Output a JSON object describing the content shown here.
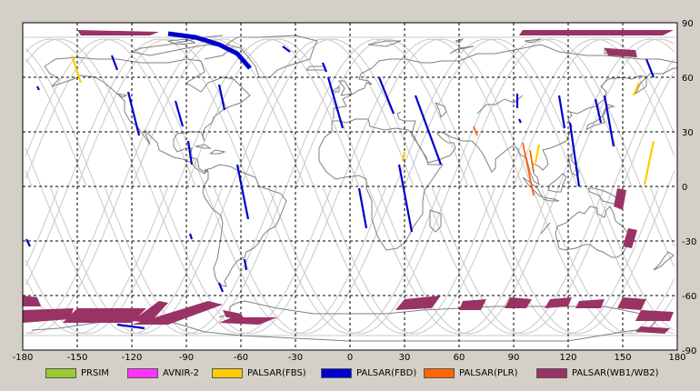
{
  "chart_data": {
    "type": "map",
    "xlim": [
      -180,
      180
    ],
    "ylim": [
      -90,
      90
    ],
    "x_ticks": [
      "-180",
      "-150",
      "-120",
      "-90",
      "-60",
      "-30",
      "0",
      "30",
      "60",
      "90",
      "120",
      "150",
      "180"
    ],
    "y_ticks": [
      {
        "v": 90,
        "t": "90"
      },
      {
        "v": 60,
        "t": "60"
      },
      {
        "v": 30,
        "t": "30"
      },
      {
        "v": 0,
        "t": "0"
      },
      {
        "v": -30,
        "t": "-30"
      },
      {
        "v": -60,
        "t": "-60"
      },
      {
        "v": -90,
        "t": "-90"
      }
    ],
    "grid": true,
    "legend": [
      {
        "name": "PRSIM",
        "color": "#99cc33"
      },
      {
        "name": "AVNIR-2",
        "color": "#ff33ff"
      },
      {
        "name": "PALSAR(FBS)",
        "color": "#ffcc00"
      },
      {
        "name": "PALSAR(FBD)",
        "color": "#0000cc"
      },
      {
        "name": "PALSAR(PLR)",
        "color": "#ff6600"
      },
      {
        "name": "PALSAR(WB1/WB2)",
        "color": "#993366"
      }
    ],
    "strips_fbd": [
      [
        -172,
        55,
        -171,
        53
      ],
      [
        -131,
        72,
        -128,
        64
      ],
      [
        -122,
        52,
        -116,
        28
      ],
      [
        -96,
        47,
        -92,
        33
      ],
      [
        -89,
        25,
        -87,
        12
      ],
      [
        -72,
        56,
        -69,
        42
      ],
      [
        -62,
        12,
        -56,
        -18
      ],
      [
        -58,
        -40,
        -57,
        -46
      ],
      [
        -72,
        -53,
        -70,
        -58
      ],
      [
        -12,
        60,
        -4,
        32
      ],
      [
        16,
        60,
        24,
        40
      ],
      [
        36,
        50,
        50,
        12
      ],
      [
        5,
        -1,
        9,
        -23
      ],
      [
        27,
        12,
        34,
        -25
      ],
      [
        92,
        51,
        92,
        43
      ],
      [
        93,
        37,
        94,
        35
      ],
      [
        115,
        50,
        118,
        32
      ],
      [
        121,
        35,
        126,
        0
      ],
      [
        140,
        50,
        145,
        22
      ],
      [
        163,
        70,
        167,
        60
      ],
      [
        -128,
        -76,
        -113,
        -78
      ],
      [
        -37,
        77,
        -33,
        74
      ],
      [
        -15,
        68,
        -13,
        63
      ],
      [
        135,
        48,
        138,
        35
      ],
      [
        -88,
        -26,
        -87,
        -29
      ],
      [
        -178,
        -29,
        -176,
        -33
      ]
    ],
    "arc_fbd": [
      [
        -100,
        84
      ],
      [
        -85,
        82
      ],
      [
        -72,
        78
      ],
      [
        -62,
        73
      ],
      [
        -55,
        65
      ]
    ],
    "strips_fbs": [
      [
        -153,
        72,
        -148,
        57
      ],
      [
        30,
        19,
        29,
        14
      ],
      [
        167,
        25,
        162,
        1
      ],
      [
        159,
        57,
        156,
        50
      ],
      [
        104,
        23,
        102,
        13
      ]
    ],
    "strips_plr": [
      [
        68,
        33,
        70,
        28
      ],
      [
        95,
        24,
        101,
        -5
      ],
      [
        99,
        20,
        101,
        8
      ]
    ],
    "wb_polys": [
      [
        [
          -150,
          86
        ],
        [
          -105,
          85
        ],
        [
          -110,
          83
        ],
        [
          -148,
          83
        ]
      ],
      [
        [
          95,
          86
        ],
        [
          178,
          86
        ],
        [
          172,
          83
        ],
        [
          93,
          83
        ]
      ],
      [
        [
          140,
          76
        ],
        [
          157,
          75
        ],
        [
          158,
          71
        ],
        [
          142,
          72
        ]
      ],
      [
        [
          147,
          -1
        ],
        [
          152,
          -2
        ],
        [
          150,
          -13
        ],
        [
          145,
          -11
        ]
      ],
      [
        [
          153,
          -23
        ],
        [
          158,
          -24
        ],
        [
          155,
          -34
        ],
        [
          150,
          -33
        ]
      ],
      [
        [
          -180,
          -60
        ],
        [
          -172,
          -61
        ],
        [
          -170,
          -66
        ],
        [
          -180,
          -66
        ]
      ],
      [
        [
          -180,
          -68
        ],
        [
          -152,
          -67
        ],
        [
          -154,
          -73
        ],
        [
          -180,
          -75
        ]
      ],
      [
        [
          -150,
          -67
        ],
        [
          -112,
          -67
        ],
        [
          -120,
          -75
        ],
        [
          -158,
          -75
        ]
      ],
      [
        [
          -105,
          -63
        ],
        [
          -100,
          -64
        ],
        [
          -110,
          -75
        ],
        [
          -120,
          -74
        ]
      ],
      [
        [
          -78,
          -63
        ],
        [
          -70,
          -65
        ],
        [
          -100,
          -76
        ],
        [
          -120,
          -76
        ]
      ],
      [
        [
          -70,
          -68
        ],
        [
          -60,
          -70
        ],
        [
          -58,
          -73
        ],
        [
          -68,
          -72
        ]
      ],
      [
        [
          -65,
          -72
        ],
        [
          -40,
          -72
        ],
        [
          -50,
          -76
        ],
        [
          -72,
          -75
        ]
      ],
      [
        [
          30,
          -62
        ],
        [
          50,
          -60
        ],
        [
          45,
          -67
        ],
        [
          25,
          -68
        ]
      ],
      [
        [
          62,
          -63
        ],
        [
          75,
          -62
        ],
        [
          72,
          -68
        ],
        [
          60,
          -68
        ]
      ],
      [
        [
          88,
          -61
        ],
        [
          100,
          -62
        ],
        [
          97,
          -67
        ],
        [
          85,
          -67
        ]
      ],
      [
        [
          110,
          -62
        ],
        [
          122,
          -61
        ],
        [
          120,
          -66
        ],
        [
          107,
          -67
        ]
      ],
      [
        [
          126,
          -63
        ],
        [
          140,
          -62
        ],
        [
          138,
          -67
        ],
        [
          124,
          -67
        ]
      ],
      [
        [
          150,
          -61
        ],
        [
          163,
          -62
        ],
        [
          160,
          -68
        ],
        [
          147,
          -67
        ]
      ],
      [
        [
          160,
          -68
        ],
        [
          178,
          -69
        ],
        [
          176,
          -74
        ],
        [
          157,
          -74
        ]
      ],
      [
        [
          160,
          -77
        ],
        [
          176,
          -78
        ],
        [
          173,
          -81
        ],
        [
          157,
          -80
        ]
      ]
    ]
  }
}
